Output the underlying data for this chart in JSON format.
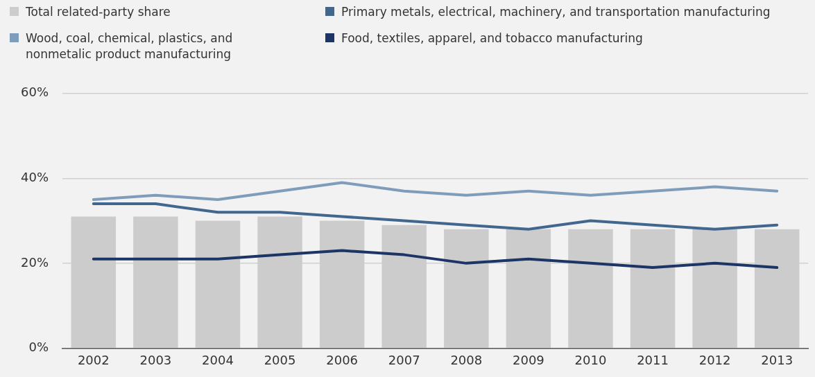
{
  "chart_data": {
    "type": "bar",
    "categories": [
      "2002",
      "2003",
      "2004",
      "2005",
      "2006",
      "2007",
      "2008",
      "2009",
      "2010",
      "2011",
      "2012",
      "2013"
    ],
    "series": [
      {
        "name": "Total related-party share",
        "color": "#cccccc",
        "values": [
          31,
          31,
          30,
          31,
          30,
          29,
          28,
          28,
          28,
          28,
          28,
          28
        ]
      },
      {
        "name": "Wood, coal, chemical, plastics, and nonmetalic product manufacturing",
        "type": "line",
        "color": "#7f9cba",
        "values": [
          35,
          36,
          35,
          37,
          39,
          37,
          36,
          37,
          36,
          37,
          38,
          37
        ]
      },
      {
        "name": "Primary metals, electrical, machinery, and transportation manufacturing",
        "type": "line",
        "color": "#41678f",
        "values": [
          34,
          34,
          32,
          32,
          31,
          30,
          29,
          28,
          30,
          29,
          28,
          29
        ]
      },
      {
        "name": "Food, textiles, apparel, and tobacco manufacturing",
        "type": "line",
        "color": "#1c3466",
        "values": [
          21,
          21,
          21,
          22,
          23,
          22,
          20,
          21,
          20,
          19,
          20,
          19
        ]
      }
    ],
    "ylim": [
      0,
      60
    ],
    "yticks": [
      {
        "value": 0,
        "label": "0%"
      },
      {
        "value": 20,
        "label": "20%"
      },
      {
        "value": 40,
        "label": "40%"
      },
      {
        "value": 60,
        "label": "60%"
      }
    ],
    "grid": "y",
    "legend": "top",
    "marker": "none",
    "line_style": "solid"
  }
}
